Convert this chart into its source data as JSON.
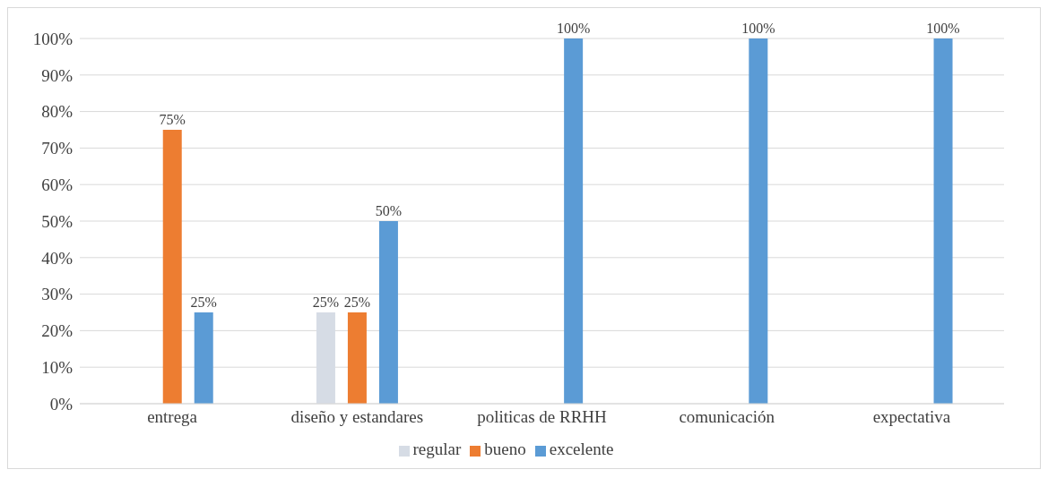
{
  "chart_data": {
    "type": "bar",
    "categories": [
      "entrega",
      "diseño y estandares",
      "politicas de RRHH",
      "comunicación",
      "expectativa"
    ],
    "series": [
      {
        "name": "regular",
        "color": "#d6dce5",
        "values": [
          null,
          25,
          null,
          null,
          null
        ],
        "value_labels": [
          null,
          "25%",
          null,
          null,
          null
        ]
      },
      {
        "name": "bueno",
        "color": "#ed7d31",
        "values": [
          75,
          25,
          null,
          null,
          null
        ],
        "value_labels": [
          "75%",
          "25%",
          null,
          null,
          null
        ]
      },
      {
        "name": "excelente",
        "color": "#5b9bd5",
        "values": [
          25,
          50,
          100,
          100,
          100
        ],
        "value_labels": [
          "25%",
          "50%",
          "100%",
          "100%",
          "100%"
        ]
      }
    ],
    "ylim": [
      0,
      100
    ],
    "yticks": [
      {
        "value": 0,
        "label": "0%"
      },
      {
        "value": 10,
        "label": "10%"
      },
      {
        "value": 20,
        "label": "20%"
      },
      {
        "value": 30,
        "label": "30%"
      },
      {
        "value": 40,
        "label": "40%"
      },
      {
        "value": 50,
        "label": "50%"
      },
      {
        "value": 60,
        "label": "60%"
      },
      {
        "value": 70,
        "label": "70%"
      },
      {
        "value": 80,
        "label": "80%"
      },
      {
        "value": 90,
        "label": "90%"
      },
      {
        "value": 100,
        "label": "100%"
      }
    ],
    "grid": "y",
    "legend": "bottom"
  }
}
